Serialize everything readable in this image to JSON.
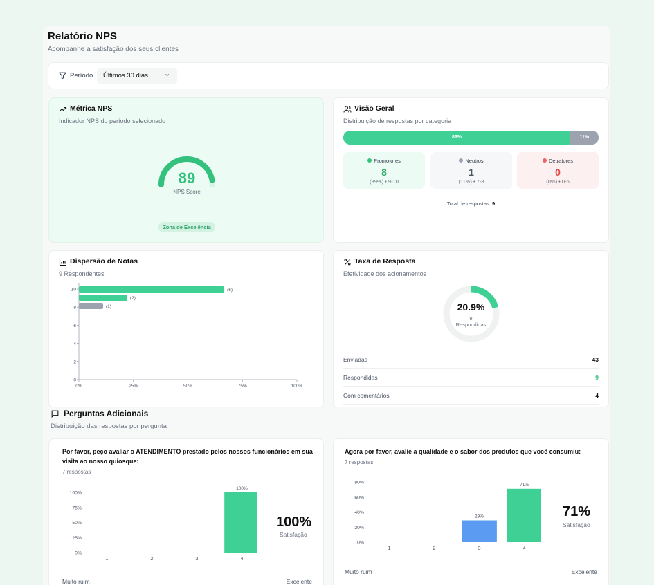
{
  "header": {
    "title": "Relatório NPS",
    "subtitle": "Acompanhe a satisfação dos seus clientes"
  },
  "filter": {
    "label": "Período",
    "period_value": "Últimos 30 dias"
  },
  "nps_card": {
    "title": "Métrica NPS",
    "subtitle": "Indicador NPS do período selecionado",
    "score": "89",
    "score_label": "NPS Score",
    "zone": "Zona de Excelência",
    "gauge_fraction": 0.945
  },
  "overview_card": {
    "title": "Visão Geral",
    "subtitle": "Distribuição de respostas por categoria",
    "bar_green_label": "89%",
    "bar_grey_label": "11%",
    "bar_green_fraction": 0.89,
    "categories": [
      {
        "name": "Promotores",
        "count": "8",
        "detail": "(89%) • 9-10",
        "color": "#34c17e"
      },
      {
        "name": "Neutros",
        "count": "1",
        "detail": "(11%) • 7-8",
        "color": "#9ca3af"
      },
      {
        "name": "Detratores",
        "count": "0",
        "detail": "(0%) • 0-6",
        "color": "#ef6461"
      }
    ],
    "total_label": "Total de respostas:",
    "total_value": "9"
  },
  "dispersion_card": {
    "title": "Dispersão de Notas",
    "subtitle": "9 Respondentes"
  },
  "rate_card": {
    "title": "Taxa de Resposta",
    "subtitle": "Efetividade dos acionamentos",
    "percent": "20.9%",
    "responded_count": "9",
    "responded_label": "Respondidas",
    "rate_fraction": 0.209,
    "rows": [
      {
        "label": "Enviadas",
        "value": "43",
        "color": "#111111"
      },
      {
        "label": "Respondidas",
        "value": "9",
        "color": "#34c17e"
      },
      {
        "label": "Com comentários",
        "value": "4",
        "color": "#111111"
      }
    ]
  },
  "additional": {
    "title": "Perguntas Adicionais",
    "subtitle": "Distribuição das respostas por pergunta"
  },
  "questions": [
    {
      "text": "Por favor, peço avaliar o ATENDIMENTO prestado pelos nossos funcionários em sua visita ao nosso quiosque:",
      "count": "7 respostas",
      "satisfaction": "100%",
      "satisfaction_label": "Satisfação",
      "scale_low": "Muito ruim",
      "scale_high": "Excelente"
    },
    {
      "text": "Agora por favor, avalie a qualidade e o sabor dos produtos que você consumiu:",
      "count": "7 respostas",
      "satisfaction": "71%",
      "satisfaction_label": "Satisfação",
      "scale_low": "Muito ruim",
      "scale_high": "Excelente"
    }
  ],
  "chart_data": [
    {
      "type": "bar",
      "orientation": "horizontal",
      "categories": [
        "10",
        "9",
        "8",
        "6",
        "4",
        "2",
        "0"
      ],
      "y_ticks": [
        "10",
        "8",
        "6",
        "4",
        "2",
        "0"
      ],
      "values": [
        66.7,
        22.2,
        11.1,
        0,
        0,
        0,
        0
      ],
      "labels": [
        "(6)",
        "(2)",
        "(1)",
        "",
        "",
        "",
        ""
      ],
      "colors": [
        "#3fd095",
        "#3fd095",
        "#9ca3af"
      ],
      "x_ticks": [
        "0%",
        "25%",
        "50%",
        "75%",
        "100%"
      ],
      "xlim": [
        0,
        100
      ],
      "xlabel": "",
      "ylabel": "",
      "title": "Dispersão de Notas"
    },
    {
      "type": "bar",
      "categories": [
        "1",
        "2",
        "3",
        "4"
      ],
      "values": [
        0,
        0,
        0,
        100
      ],
      "labels": [
        "",
        "",
        "",
        "100%"
      ],
      "colors": [
        "#3fd095",
        "#3fd095",
        "#3fd095",
        "#3fd095"
      ],
      "y_ticks": [
        "100%",
        "75%",
        "50%",
        "25%",
        "0%"
      ],
      "ylim": [
        0,
        100
      ],
      "xlabel": "",
      "ylabel": ""
    },
    {
      "type": "bar",
      "categories": [
        "1",
        "2",
        "3",
        "4"
      ],
      "values": [
        0,
        0,
        29,
        71
      ],
      "labels": [
        "",
        "",
        "29%",
        "71%"
      ],
      "colors": [
        "#3fd095",
        "#3fd095",
        "#5b9cf2",
        "#3fd095"
      ],
      "y_ticks": [
        "80%",
        "60%",
        "40%",
        "20%",
        "0%"
      ],
      "ylim": [
        0,
        80
      ],
      "xlabel": "",
      "ylabel": ""
    }
  ]
}
